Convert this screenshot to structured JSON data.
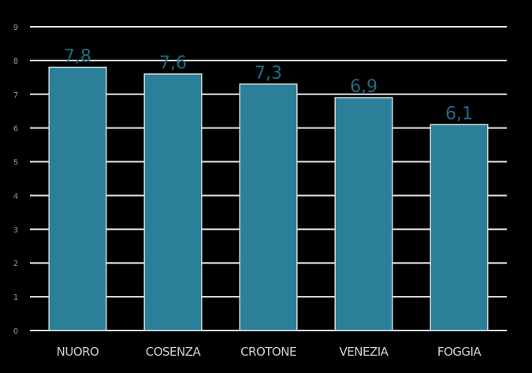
{
  "chart_data": {
    "type": "bar",
    "title": "",
    "xlabel": "",
    "ylabel": "",
    "categories": [
      "NUORO",
      "COSENZA",
      "CROTONE",
      "VENEZIA",
      "FOGGIA"
    ],
    "values": [
      7.8,
      7.6,
      7.3,
      6.9,
      6.1
    ],
    "data_labels": [
      "7,8",
      "7,6",
      "7,3",
      "6,9",
      "6,1"
    ],
    "ylim": [
      0,
      9
    ],
    "yticks": [
      0,
      1,
      2,
      3,
      4,
      5,
      6,
      7,
      8,
      9
    ],
    "grid": true,
    "legend": "none",
    "colors": {
      "bar": "#2b7f98",
      "bar_edge": "#d8dde0",
      "data_label": "#1f6a80",
      "gridline": "#e6e6e6",
      "background": "#000000",
      "category_text": "#cfd3d6",
      "tick_text": "#9a9a9a"
    }
  }
}
